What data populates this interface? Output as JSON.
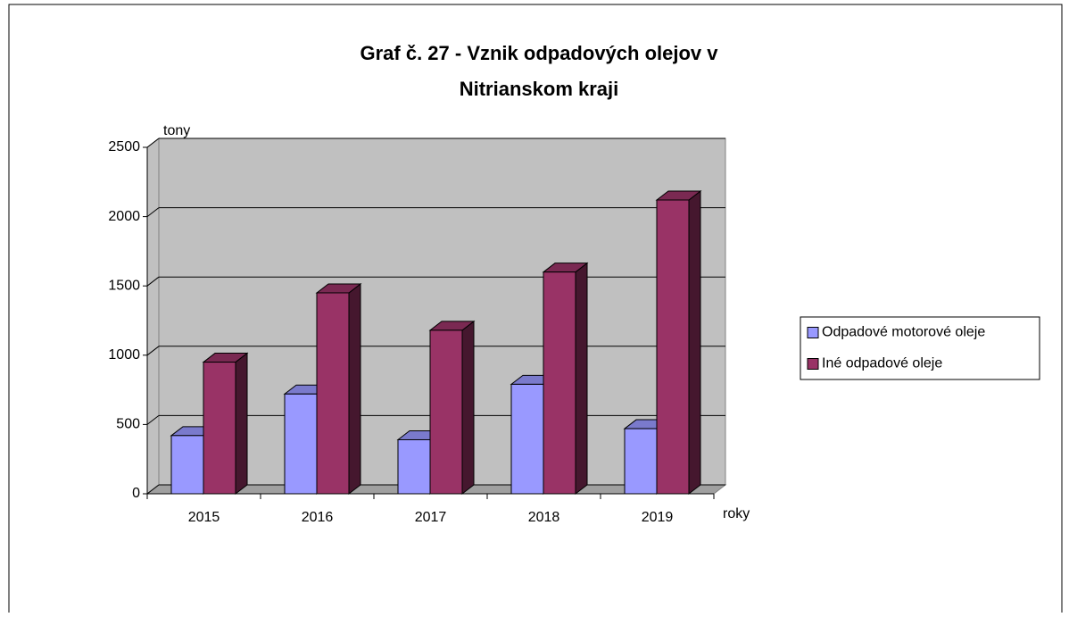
{
  "chart_data": {
    "type": "bar3d",
    "title": [
      "Graf č. 27 - Vznik odpadových olejov  v",
      "Nitrianskom kraji"
    ],
    "y_label": "tony",
    "x_label": "roky",
    "categories": [
      "2015",
      "2016",
      "2017",
      "2018",
      "2019"
    ],
    "series": [
      {
        "name": "Odpadové motorové oleje",
        "color": "#9999ff",
        "values": [
          420,
          720,
          390,
          790,
          470
        ]
      },
      {
        "name": "Iné odpadové oleje",
        "color": "#993366",
        "values": [
          950,
          1450,
          1180,
          1600,
          2120
        ]
      }
    ],
    "ylim": [
      0,
      2500
    ],
    "yticks": [
      0,
      500,
      1000,
      1500,
      2000,
      2500
    ],
    "grid": true,
    "legend": "right"
  }
}
